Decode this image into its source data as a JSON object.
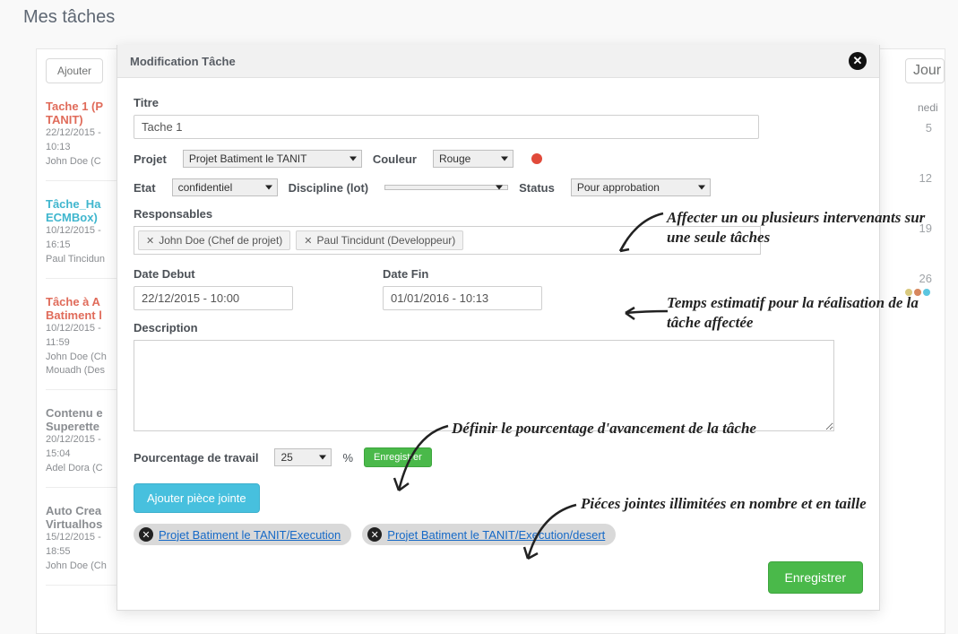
{
  "page": {
    "title": "Mes tâches"
  },
  "sidebar": {
    "add_button": "Ajouter",
    "tasks": [
      {
        "title": "Tache 1 (P",
        "subtitle": "TANIT)",
        "color_class": "c-red",
        "date": "22/12/2015 -",
        "time": "10:13",
        "person": "John Doe (C"
      },
      {
        "title": "Tâche_Ha",
        "subtitle": "ECMBox)",
        "color_class": "c-blue",
        "date": "10/12/2015 -",
        "time": "16:15",
        "person": "Paul Tincidun"
      },
      {
        "title": "Tâche à A",
        "subtitle": "Batiment l",
        "color_class": "c-red",
        "date": "10/12/2015 -",
        "time": "11:59",
        "person": "John Doe (Ch",
        "person2": "Mouadh (Des"
      },
      {
        "title": "Contenu e",
        "subtitle": "Superette",
        "color_class": "c-gray",
        "date": "20/12/2015 -",
        "time": "15:04",
        "person": "Adel Dora (C"
      },
      {
        "title": "Auto Crea",
        "subtitle": "Virtualhos",
        "color_class": "c-gray",
        "date": "15/12/2015 -",
        "time": "18:55",
        "person": "John Doe (Ch"
      }
    ]
  },
  "calendar": {
    "day_button": "Jour",
    "weekday": "nedi",
    "days": [
      "5",
      "12",
      "19",
      "26"
    ],
    "dot_colors": [
      "#d9c97e",
      "#d7875e",
      "#5bc6e0"
    ]
  },
  "modal": {
    "title": "Modification Tâche",
    "labels": {
      "titre": "Titre",
      "projet": "Projet",
      "couleur": "Couleur",
      "etat": "Etat",
      "discipline": "Discipline (lot)",
      "status": "Status",
      "responsables": "Responsables",
      "date_debut": "Date Debut",
      "date_fin": "Date Fin",
      "description": "Description",
      "pourcentage": "Pourcentage de travail"
    },
    "title_value": "Tache 1",
    "projet_value": "Projet Batiment le TANIT",
    "couleur_value": "Rouge",
    "couleur_hex": "#e14a3a",
    "etat_value": "confidentiel",
    "discipline_value": "",
    "status_value": "Pour approbation",
    "responsables": [
      "John Doe (Chef de projet)",
      "Paul Tincidunt (Developpeur)"
    ],
    "date_debut": "22/12/2015 - 10:00",
    "date_fin": "01/01/2016 - 10:13",
    "percent_value": "25",
    "percent_sign": "%",
    "save_small": "Enregistrer",
    "add_attachment": "Ajouter pièce jointe",
    "attachments": [
      "Projet Batiment le TANIT/Execution",
      "Projet Batiment le TANIT/Execution/desert"
    ],
    "save": "Enregistrer"
  },
  "annotations": {
    "a1": "Affecter un ou plusieurs intervenants sur une seule tâches",
    "a2": "Temps estimatif pour la réalisation de la tâche affectée",
    "a3": "Définir le pourcentage d'avancement de la tâche",
    "a4": "Piéces jointes illimitées en nombre et en taille"
  },
  "styling": {
    "accent_green": "#4ab94a",
    "accent_blue": "#47c0de",
    "tag_bg": "#f2f2f2",
    "pill_bg": "#d9d9d9",
    "annotation_font": "Comic Sans MS"
  }
}
